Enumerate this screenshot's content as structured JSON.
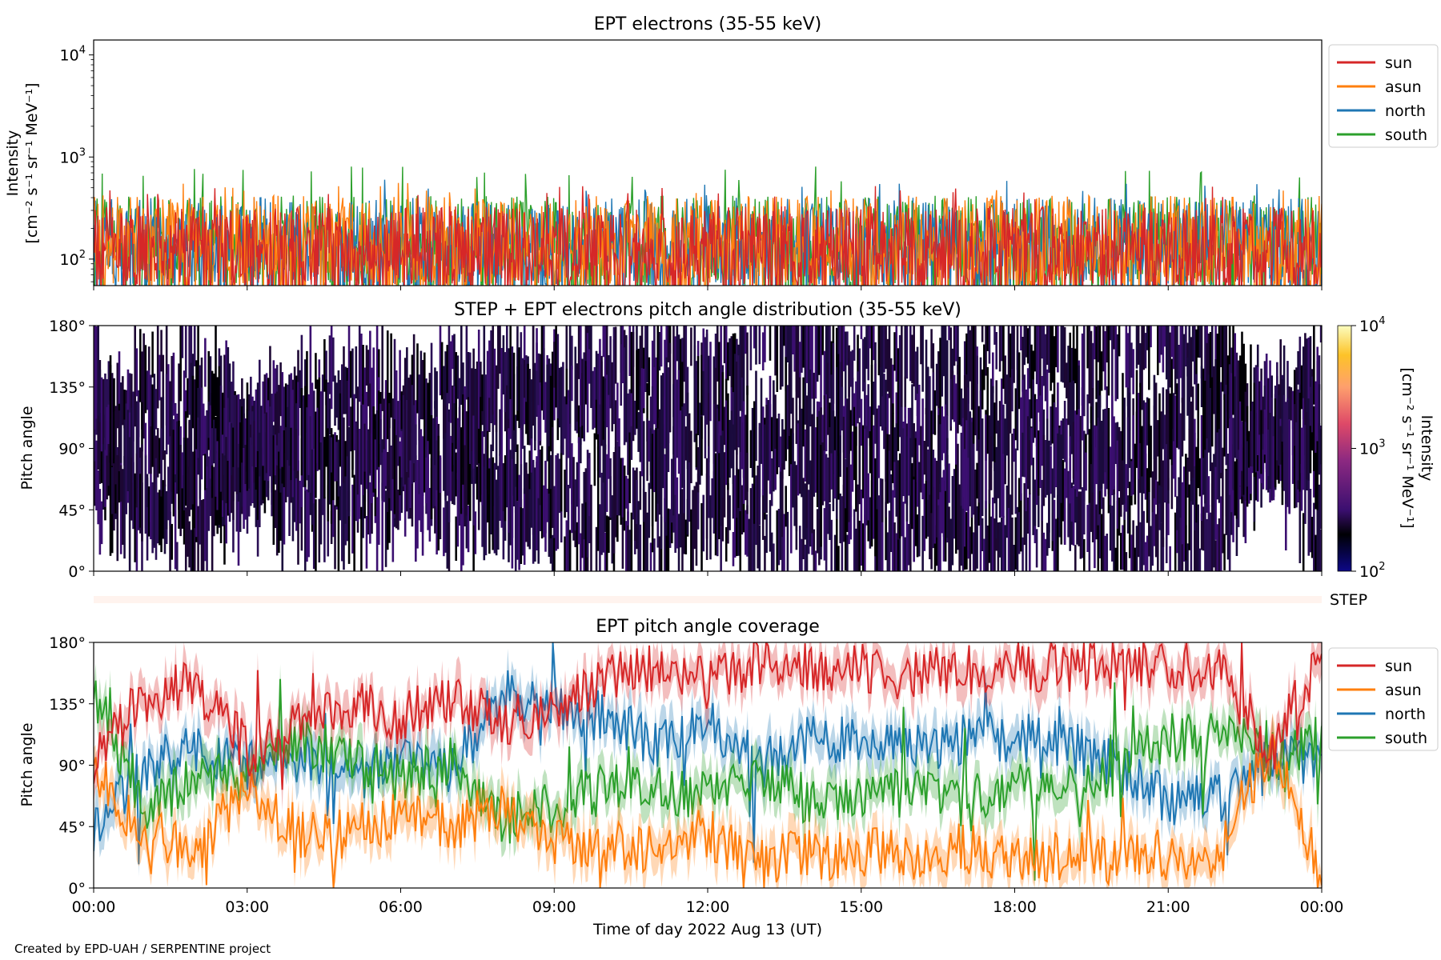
{
  "credit": "Created by EPD-UAH / SERPENTINE project",
  "colors": {
    "sun": "#d62728",
    "asun": "#ff7f0e",
    "north": "#1f77b4",
    "south": "#2ca02c",
    "step_bar": "#fff3ee"
  },
  "chart_data": [
    {
      "type": "line",
      "title": "EPT electrons (35-55 keV)",
      "ylabel": "Intensity",
      "yunit": "[cm⁻² s⁻¹ sr⁻¹ MeV⁻¹]",
      "yscale": "log",
      "ylim": [
        55,
        14000
      ],
      "yticks": [
        {
          "value": 100,
          "base": "10",
          "exp": "2"
        },
        {
          "value": 1000,
          "base": "10",
          "exp": "3"
        },
        {
          "value": 10000,
          "base": "10",
          "exp": "4"
        }
      ],
      "x_range_hours": [
        0,
        24
      ],
      "legend": {
        "placement": "outside-right",
        "entries": [
          "sun",
          "asun",
          "north",
          "south"
        ]
      },
      "series": [
        {
          "name": "sun",
          "typical_range": [
            55,
            330
          ],
          "peak": 520
        },
        {
          "name": "asun",
          "typical_range": [
            55,
            420
          ],
          "peak": 560
        },
        {
          "name": "north",
          "typical_range": [
            55,
            400
          ],
          "peak": 600
        },
        {
          "name": "south",
          "typical_range": [
            55,
            420
          ],
          "peak": 820
        }
      ]
    },
    {
      "type": "heatmap",
      "title": "STEP + EPT electrons pitch angle distribution (35-55 keV)",
      "ylabel": "Pitch angle",
      "ylim": [
        0,
        180
      ],
      "yticks": [
        "0°",
        "45°",
        "90°",
        "135°",
        "180°"
      ],
      "x_range_hours": [
        0,
        24
      ],
      "colorbar": {
        "label": "Intensity",
        "unit": "[cm⁻² s⁻¹ sr⁻¹ MeV⁻¹]",
        "scale": "log",
        "range": [
          100,
          10000
        ],
        "ticks": [
          {
            "value": 100,
            "base": "10",
            "exp": "2"
          },
          {
            "value": 1000,
            "base": "10",
            "exp": "3"
          },
          {
            "value": 10000,
            "base": "10",
            "exp": "4"
          }
        ]
      },
      "dominant_value_range": [
        100,
        250
      ]
    },
    {
      "type": "bar",
      "label": "STEP",
      "x_range_hours": [
        0,
        24
      ]
    },
    {
      "type": "line",
      "title": "EPT pitch angle coverage",
      "ylabel": "Pitch angle",
      "xlabel": "Time of day 2022 Aug 13 (UT)",
      "ylim": [
        0,
        180
      ],
      "yticks": [
        "0°",
        "45°",
        "90°",
        "135°",
        "180°"
      ],
      "xticks": [
        "00:00",
        "03:00",
        "06:00",
        "09:00",
        "12:00",
        "15:00",
        "18:00",
        "21:00",
        "00:00"
      ],
      "legend": {
        "placement": "outside-right",
        "entries": [
          "sun",
          "asun",
          "north",
          "south"
        ]
      },
      "series": [
        {
          "name": "sun",
          "x": [
            0,
            1,
            2,
            3,
            4,
            5,
            6,
            7,
            8,
            9,
            10,
            11,
            12,
            13,
            14,
            15,
            16,
            17,
            18,
            19,
            20,
            21,
            22,
            23,
            24
          ],
          "y": [
            95,
            140,
            150,
            100,
            120,
            135,
            125,
            140,
            120,
            135,
            155,
            160,
            150,
            165,
            160,
            160,
            155,
            160,
            165,
            160,
            165,
            165,
            160,
            100,
            170
          ]
        },
        {
          "name": "asun",
          "x": [
            0,
            1,
            2,
            3,
            4,
            5,
            6,
            7,
            8,
            9,
            10,
            11,
            12,
            13,
            14,
            15,
            16,
            17,
            18,
            19,
            20,
            21,
            22,
            23,
            24
          ],
          "y": [
            85,
            40,
            25,
            75,
            40,
            40,
            55,
            45,
            60,
            35,
            30,
            30,
            40,
            20,
            25,
            25,
            25,
            30,
            20,
            25,
            20,
            25,
            25,
            105,
            10
          ]
        },
        {
          "name": "north",
          "x": [
            0,
            1,
            2,
            3,
            4,
            5,
            6,
            7,
            8,
            9,
            10,
            11,
            12,
            13,
            14,
            15,
            16,
            17,
            18,
            19,
            20,
            21,
            22,
            23,
            24
          ],
          "y": [
            45,
            90,
            100,
            90,
            95,
            80,
            90,
            85,
            145,
            135,
            125,
            105,
            125,
            90,
            110,
            105,
            100,
            110,
            110,
            105,
            90,
            65,
            65,
            100,
            85
          ]
        },
        {
          "name": "south",
          "x": [
            0,
            1,
            2,
            3,
            4,
            5,
            6,
            7,
            8,
            9,
            10,
            11,
            12,
            13,
            14,
            15,
            16,
            17,
            18,
            19,
            20,
            21,
            22,
            23,
            24
          ],
          "y": [
            145,
            60,
            80,
            80,
            110,
            95,
            80,
            95,
            50,
            60,
            75,
            70,
            70,
            80,
            65,
            70,
            70,
            65,
            75,
            70,
            85,
            110,
            115,
            95,
            110
          ]
        }
      ]
    }
  ]
}
